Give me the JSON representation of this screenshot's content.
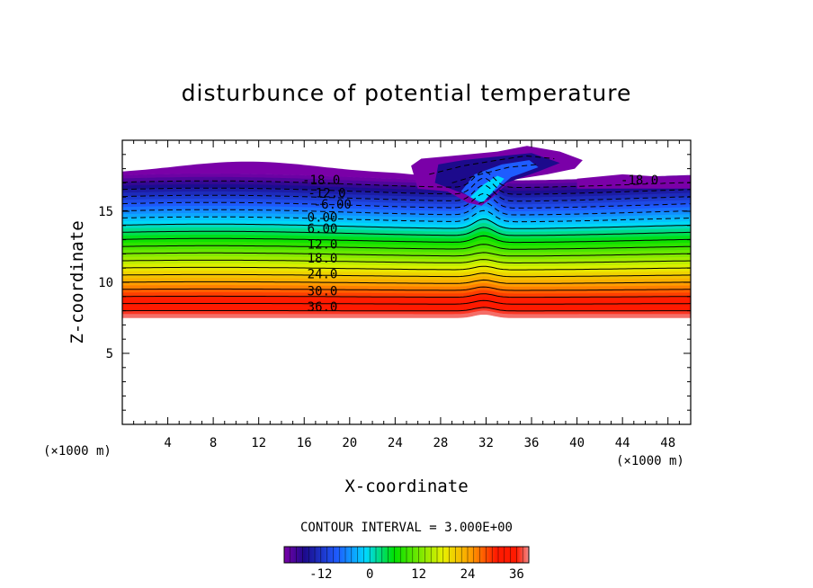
{
  "chart_data": {
    "type": "heatmap",
    "title": "disturbunce of potential temperature",
    "xlabel": "X-coordinate",
    "ylabel": "Z-coordinate",
    "x_unit_left": "(×1000 m)",
    "x_unit_right": "(×1000 m)",
    "xlim": [
      0,
      50
    ],
    "ylim": [
      0,
      20
    ],
    "x_ticks": [
      4,
      8,
      12,
      16,
      20,
      24,
      28,
      32,
      36,
      40,
      44,
      48
    ],
    "x_tick_labels": [
      "4",
      "8",
      "12",
      "16",
      "20",
      "24",
      "28",
      "32",
      "36",
      "40",
      "44",
      "48"
    ],
    "y_ticks": [
      5,
      10,
      15
    ],
    "y_tick_labels": [
      "5",
      "10",
      "15"
    ],
    "contour_interval_label": "CONTOUR INTERVAL = 3.000E+00",
    "contour_interval": 3.0,
    "field_range": [
      -21,
      39
    ],
    "band_bottom_z": 7.5,
    "band_top_z": 17.4,
    "contour_labels": [
      {
        "text": "-18.0",
        "value": -18,
        "x": 17.5,
        "z": 17.2
      },
      {
        "text": "-12.0",
        "value": -12,
        "x": 18.0,
        "z": 16.3
      },
      {
        "text": "-6.00",
        "value": -6,
        "x": 18.5,
        "z": 15.5
      },
      {
        "text": "0.00",
        "value": 0,
        "x": 17.6,
        "z": 14.6
      },
      {
        "text": "6.00",
        "value": 6,
        "x": 17.6,
        "z": 13.8
      },
      {
        "text": "12.0",
        "value": 12,
        "x": 17.6,
        "z": 12.7
      },
      {
        "text": "18.0",
        "value": 18,
        "x": 17.6,
        "z": 11.7
      },
      {
        "text": "24.0",
        "value": 24,
        "x": 17.6,
        "z": 10.6
      },
      {
        "text": "30.0",
        "value": 30,
        "x": 17.6,
        "z": 9.4
      },
      {
        "text": "36.0",
        "value": 36,
        "x": 17.6,
        "z": 8.3
      },
      {
        "text": "-18.0",
        "value": -18,
        "x": 45.5,
        "z": 17.2
      }
    ],
    "colorbar": {
      "min": -21,
      "max": 39,
      "ticks": [
        -12,
        0,
        12,
        24,
        36
      ],
      "tick_labels": [
        "-12",
        "0",
        "12",
        "24",
        "36"
      ]
    },
    "colors": {
      "purple": "#7a00a8",
      "navy": "#1c0a8c",
      "blue": "#1e5cff",
      "cyan": "#00d8ff",
      "green": "#00e000",
      "yellow": "#e8f000",
      "orange": "#ff9a00",
      "red": "#ff1a00",
      "pink": "#f08a8a"
    }
  }
}
